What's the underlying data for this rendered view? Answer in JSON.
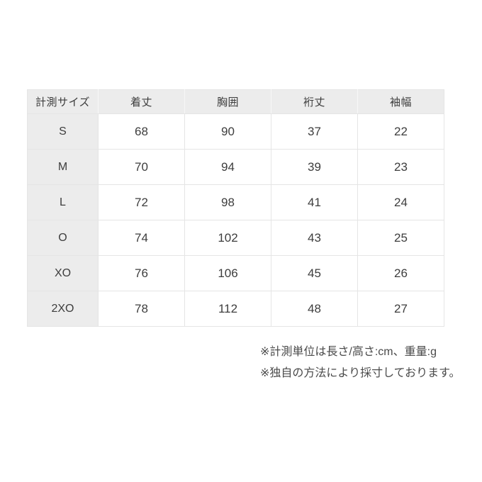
{
  "table": {
    "headers": [
      "計測サイズ",
      "着丈",
      "胸囲",
      "裄丈",
      "袖幅"
    ],
    "rows": [
      {
        "size": "S",
        "values": [
          "68",
          "90",
          "37",
          "22"
        ]
      },
      {
        "size": "M",
        "values": [
          "70",
          "94",
          "39",
          "23"
        ]
      },
      {
        "size": "L",
        "values": [
          "72",
          "98",
          "41",
          "24"
        ]
      },
      {
        "size": "O",
        "values": [
          "74",
          "102",
          "43",
          "25"
        ]
      },
      {
        "size": "XO",
        "values": [
          "76",
          "106",
          "45",
          "26"
        ]
      },
      {
        "size": "2XO",
        "values": [
          "78",
          "112",
          "48",
          "27"
        ]
      }
    ]
  },
  "notes": [
    "※計測単位は長さ/高さ:cm、重量:g",
    "※独自の方法により採寸しております。"
  ],
  "colors": {
    "page_bg": "#ffffff",
    "header_bg": "#ececec",
    "cell_bg": "#ffffff",
    "border": "#e5e5e5",
    "table_text": "#3d3d3d",
    "note_text": "#4a4a4a"
  }
}
